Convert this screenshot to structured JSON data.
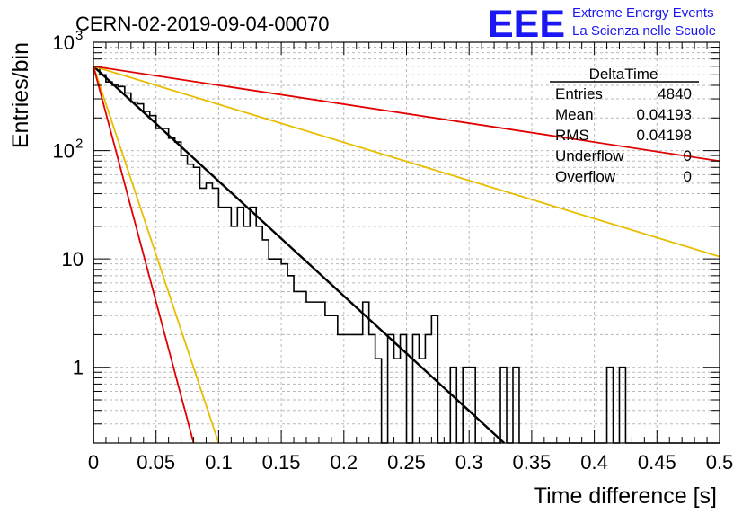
{
  "run_title": "CERN-02-2019-09-04-00070",
  "logo": {
    "mark": "EEE",
    "line1": "Extreme Energy Events",
    "line2": "La Scienza nelle Scuole",
    "color": "#1b17f2"
  },
  "stats_box": {
    "title": "DeltaTime",
    "rows": [
      {
        "label": "Entries",
        "value": "4840"
      },
      {
        "label": "Mean",
        "value": "0.04193"
      },
      {
        "label": "RMS",
        "value": "0.04198"
      },
      {
        "label": "Underflow",
        "value": "0"
      },
      {
        "label": "Overflow",
        "value": "0"
      }
    ]
  },
  "chart_data": {
    "type": "histogram",
    "xlabel": "Time difference [s]",
    "ylabel": "Entries/bin",
    "xlim": [
      0,
      0.5
    ],
    "ylim": [
      0.2,
      1000
    ],
    "y_scale": "log",
    "grid": true,
    "x_ticks": [
      "0",
      "0.05",
      "0.1",
      "0.15",
      "0.2",
      "0.25",
      "0.3",
      "0.35",
      "0.4",
      "0.45",
      "0.5"
    ],
    "y_ticks": [
      {
        "value": 1,
        "label": "1"
      },
      {
        "value": 10,
        "label": "10"
      },
      {
        "value": 100,
        "label": "10",
        "sup": "2"
      },
      {
        "value": 1000,
        "label": "10",
        "sup": "3"
      }
    ],
    "bin_width": 0.005,
    "histogram": [
      600,
      500,
      430,
      400,
      390,
      340,
      280,
      270,
      230,
      210,
      160,
      160,
      130,
      120,
      90,
      75,
      70,
      45,
      50,
      45,
      30,
      30,
      20,
      30,
      20,
      30,
      20,
      15,
      10,
      10,
      9,
      7,
      5,
      5,
      4,
      4,
      4,
      3,
      3,
      2,
      2,
      2,
      2,
      4,
      2,
      1.2,
      0.2,
      2,
      1.2,
      2,
      0.2,
      2,
      1.2,
      2,
      3,
      0.2,
      0.2,
      1,
      0.2,
      1,
      1,
      0.2,
      0.2,
      0.2,
      0.2,
      1,
      0.2,
      1,
      0.2,
      0.2,
      0.2,
      0.2,
      0.2,
      0.2,
      0.2,
      0.2,
      0.2,
      0.2,
      0.2,
      0.2,
      0.2,
      0.2,
      1,
      0.2,
      1,
      0.2,
      0.2,
      0.2,
      0.2,
      0.2,
      0.2,
      0.2,
      0.2,
      0.2,
      0.2,
      0.2,
      0.2,
      0.2,
      0.2,
      0.2
    ],
    "lines": [
      {
        "color": "#000000",
        "x": [
          0,
          0.328
        ],
        "y": [
          600,
          0.2
        ],
        "width": 2.4
      },
      {
        "color": "#e8bd00",
        "x": [
          0,
          0.5
        ],
        "y": [
          600,
          10.5
        ],
        "width": 1.8
      },
      {
        "color": "#e10000",
        "x": [
          0,
          0.5
        ],
        "y": [
          600,
          80
        ],
        "width": 1.8
      },
      {
        "color": "#e8bd00",
        "x": [
          0,
          0.1
        ],
        "y": [
          600,
          0.2
        ],
        "width": 1.8
      },
      {
        "color": "#e10000",
        "x": [
          0,
          0.08
        ],
        "y": [
          600,
          0.2
        ],
        "width": 1.8
      }
    ]
  }
}
